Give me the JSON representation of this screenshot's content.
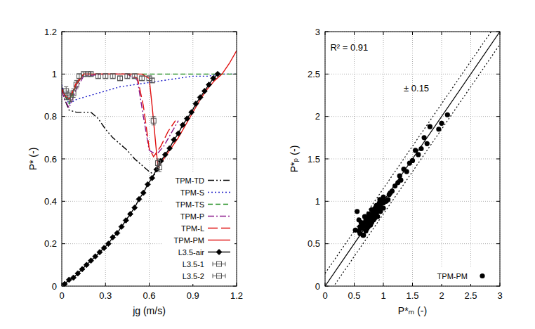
{
  "chart_data": [
    {
      "type": "line",
      "x_label": "jg (m/s)",
      "y_label": "P* (-)",
      "xlim": [
        0,
        1.2
      ],
      "xticks": [
        0,
        0.3,
        0.6,
        0.9,
        1.2
      ],
      "ylim": [
        0,
        1.2
      ],
      "yticks": [
        0,
        0.2,
        0.4,
        0.6,
        0.8,
        1,
        1.2
      ],
      "grid": true,
      "legend": "lower right",
      "series": [
        {
          "name": "TPM-TD",
          "type": "line",
          "color": "#000000",
          "line_style": "dash-dot-dot",
          "x": [
            0,
            0.02,
            0.05,
            0.1,
            0.2,
            0.25,
            0.3,
            0.35,
            0.4,
            0.45,
            0.5,
            0.55,
            0.6,
            0.65
          ],
          "values": [
            0.94,
            0.88,
            0.83,
            0.82,
            0.82,
            0.79,
            0.74,
            0.7,
            0.67,
            0.64,
            0.6,
            0.57,
            0.54,
            0.52
          ]
        },
        {
          "name": "TPM-S",
          "type": "line",
          "color": "#1c1cc8",
          "line_style": "dotted",
          "x": [
            0,
            0.02,
            0.05,
            0.1,
            0.2,
            0.3,
            0.4,
            0.5,
            0.6,
            0.7,
            0.8,
            0.9,
            1.0,
            1.1,
            1.2
          ],
          "values": [
            0.95,
            0.9,
            0.86,
            0.88,
            0.9,
            0.92,
            0.94,
            0.95,
            0.96,
            0.97,
            0.98,
            0.99,
            0.99,
            1.0,
            1.0
          ]
        },
        {
          "name": "TPM-TS",
          "type": "line",
          "color": "#1a8a1a",
          "line_style": "dashed",
          "x": [
            0,
            0.02,
            0.05,
            0.1,
            0.15,
            0.3,
            0.6,
            0.9,
            1.2
          ],
          "values": [
            0.93,
            0.9,
            0.86,
            0.95,
            1.0,
            1.0,
            1.0,
            1.0,
            1.0
          ]
        },
        {
          "name": "TPM-P",
          "type": "line",
          "color": "#8b1a8b",
          "line_style": "dash-dot",
          "x": [
            0,
            0.02,
            0.05,
            0.1,
            0.15,
            0.3,
            0.45,
            0.52,
            0.56,
            0.6,
            0.65,
            0.7,
            0.75,
            0.8
          ],
          "values": [
            0.92,
            0.88,
            0.84,
            0.93,
            0.99,
            1.0,
            1.0,
            0.97,
            0.8,
            0.64,
            0.62,
            0.66,
            0.72,
            0.78
          ]
        },
        {
          "name": "TPM-L",
          "type": "line",
          "color": "#e01010",
          "line_style": "long-dash",
          "x": [
            0,
            0.02,
            0.05,
            0.1,
            0.15,
            0.3,
            0.45,
            0.52,
            0.56,
            0.6,
            0.63,
            0.68,
            0.73,
            0.78
          ],
          "values": [
            0.93,
            0.9,
            0.88,
            0.96,
            1.0,
            1.0,
            1.0,
            0.98,
            0.85,
            0.65,
            0.61,
            0.66,
            0.73,
            0.78
          ]
        },
        {
          "name": "TPM-PM",
          "type": "line",
          "color": "#e01010",
          "line_style": "solid",
          "x": [
            0,
            0.02,
            0.05,
            0.1,
            0.15,
            0.3,
            0.45,
            0.55,
            0.6,
            0.62,
            0.66,
            0.7,
            0.75,
            0.8,
            0.85,
            0.9,
            0.95,
            1.0,
            1.05,
            1.1,
            1.15,
            1.2
          ],
          "values": [
            0.93,
            0.9,
            0.88,
            0.95,
            1.0,
            1.0,
            1.0,
            1.0,
            0.98,
            0.85,
            0.56,
            0.6,
            0.65,
            0.7,
            0.76,
            0.82,
            0.88,
            0.93,
            0.97,
            1.0,
            1.05,
            1.11
          ]
        },
        {
          "name": "L3.5-air",
          "type": "line",
          "color": "#000000",
          "line_style": "solid",
          "marker": "diamond",
          "x": [
            0.02,
            0.05,
            0.08,
            0.11,
            0.14,
            0.17,
            0.2,
            0.23,
            0.26,
            0.29,
            0.32,
            0.35,
            0.38,
            0.41,
            0.44,
            0.47,
            0.5,
            0.53,
            0.56,
            0.59,
            0.62,
            0.65,
            0.68,
            0.71,
            0.74,
            0.77,
            0.8,
            0.83,
            0.86,
            0.89,
            0.92,
            0.95,
            0.98,
            1.01,
            1.04,
            1.07
          ],
          "values": [
            0.01,
            0.03,
            0.04,
            0.06,
            0.08,
            0.1,
            0.12,
            0.14,
            0.16,
            0.18,
            0.2,
            0.23,
            0.25,
            0.28,
            0.31,
            0.34,
            0.37,
            0.41,
            0.44,
            0.48,
            0.51,
            0.55,
            0.59,
            0.62,
            0.65,
            0.69,
            0.72,
            0.76,
            0.79,
            0.82,
            0.86,
            0.89,
            0.92,
            0.95,
            0.98,
            1.0
          ]
        },
        {
          "name": "L3.5-1",
          "type": "scatter",
          "color": "#555555",
          "marker": "square",
          "x": [
            0.03,
            0.06,
            0.1,
            0.15,
            0.2,
            0.3,
            0.4,
            0.5,
            0.6,
            0.63,
            0.66
          ],
          "values": [
            0.92,
            0.89,
            0.95,
            1.0,
            1.0,
            0.99,
            0.98,
            0.99,
            0.98,
            0.78,
            0.58
          ],
          "errors": [
            0.02,
            0.02,
            0.02,
            0.01,
            0.01,
            0.01,
            0.01,
            0.01,
            0.01,
            0.02,
            0.02
          ]
        },
        {
          "name": "L3.5-2",
          "type": "scatter",
          "color": "#555555",
          "marker": "square",
          "x": [
            0.04,
            0.08,
            0.12,
            0.18,
            0.25,
            0.35,
            0.45,
            0.55,
            0.62,
            0.67
          ],
          "values": [
            0.9,
            0.91,
            0.99,
            1.0,
            0.99,
            0.99,
            0.99,
            0.98,
            0.97,
            0.56
          ],
          "errors": [
            0.02,
            0.02,
            0.01,
            0.01,
            0.01,
            0.01,
            0.01,
            0.01,
            0.01,
            0.02
          ]
        }
      ]
    },
    {
      "type": "scatter",
      "x_label": "P*ₘ (-)",
      "y_label": "P*ₚ (-)",
      "xlim": [
        0,
        3
      ],
      "xticks": [
        0,
        0.5,
        1,
        1.5,
        2,
        2.5,
        3
      ],
      "ylim": [
        0,
        3
      ],
      "yticks": [
        0,
        0.5,
        1,
        1.5,
        2,
        2.5,
        3
      ],
      "grid": true,
      "legend": "lower right",
      "annotations": [
        "R² = 0.91",
        "± 0.15"
      ],
      "lines": [
        {
          "x": [
            0,
            3
          ],
          "values": [
            0,
            3
          ],
          "color": "#000000",
          "line_style": "solid"
        },
        {
          "x": [
            0,
            3
          ],
          "values": [
            0.15,
            3.15
          ],
          "color": "#000000",
          "line_style": "dotted"
        },
        {
          "x": [
            0,
            3
          ],
          "values": [
            -0.15,
            2.85
          ],
          "color": "#000000",
          "line_style": "dotted"
        }
      ],
      "series": [
        {
          "name": "TPM-PM",
          "type": "scatter",
          "color": "#000000",
          "marker": "circle",
          "x": [
            0.55,
            0.58,
            0.6,
            0.62,
            0.63,
            0.65,
            0.66,
            0.68,
            0.7,
            0.7,
            0.72,
            0.73,
            0.75,
            0.76,
            0.78,
            0.8,
            0.8,
            0.82,
            0.83,
            0.85,
            0.86,
            0.88,
            0.9,
            0.9,
            0.92,
            0.93,
            0.95,
            0.96,
            0.98,
            1.0,
            1.0,
            1.02,
            1.05,
            1.08,
            1.1,
            0.6,
            0.65,
            0.7,
            0.75,
            0.8,
            0.85,
            0.9,
            0.95,
            1.0,
            0.72,
            0.78,
            0.84,
            0.88,
            0.94,
            0.58,
            0.52,
            0.62,
            0.68,
            0.74,
            1.12,
            1.15,
            1.2,
            1.25,
            1.28,
            1.3,
            1.35,
            1.4,
            1.45,
            1.5,
            1.55,
            1.6,
            1.65,
            1.7,
            1.75,
            1.8,
            1.95,
            2.0,
            2.1
          ],
          "values": [
            0.88,
            0.65,
            0.62,
            0.7,
            0.68,
            0.72,
            0.6,
            0.75,
            0.7,
            0.78,
            0.75,
            0.8,
            0.78,
            0.72,
            0.82,
            0.8,
            0.9,
            0.85,
            0.78,
            0.88,
            0.92,
            0.85,
            0.95,
            0.88,
            0.9,
            0.98,
            0.95,
            0.92,
            1.0,
            0.98,
            1.05,
            1.0,
            1.0,
            1.02,
            1.08,
            0.7,
            0.6,
            0.65,
            0.85,
            0.75,
            0.8,
            0.82,
            0.88,
            0.92,
            0.68,
            0.72,
            0.9,
            0.95,
            1.02,
            0.78,
            0.66,
            0.75,
            0.82,
            0.7,
            1.1,
            1.12,
            1.18,
            1.22,
            1.3,
            1.25,
            1.38,
            1.35,
            1.45,
            1.48,
            1.6,
            1.55,
            1.62,
            1.75,
            1.68,
            1.88,
            1.85,
            1.92,
            2.02
          ]
        }
      ]
    }
  ]
}
